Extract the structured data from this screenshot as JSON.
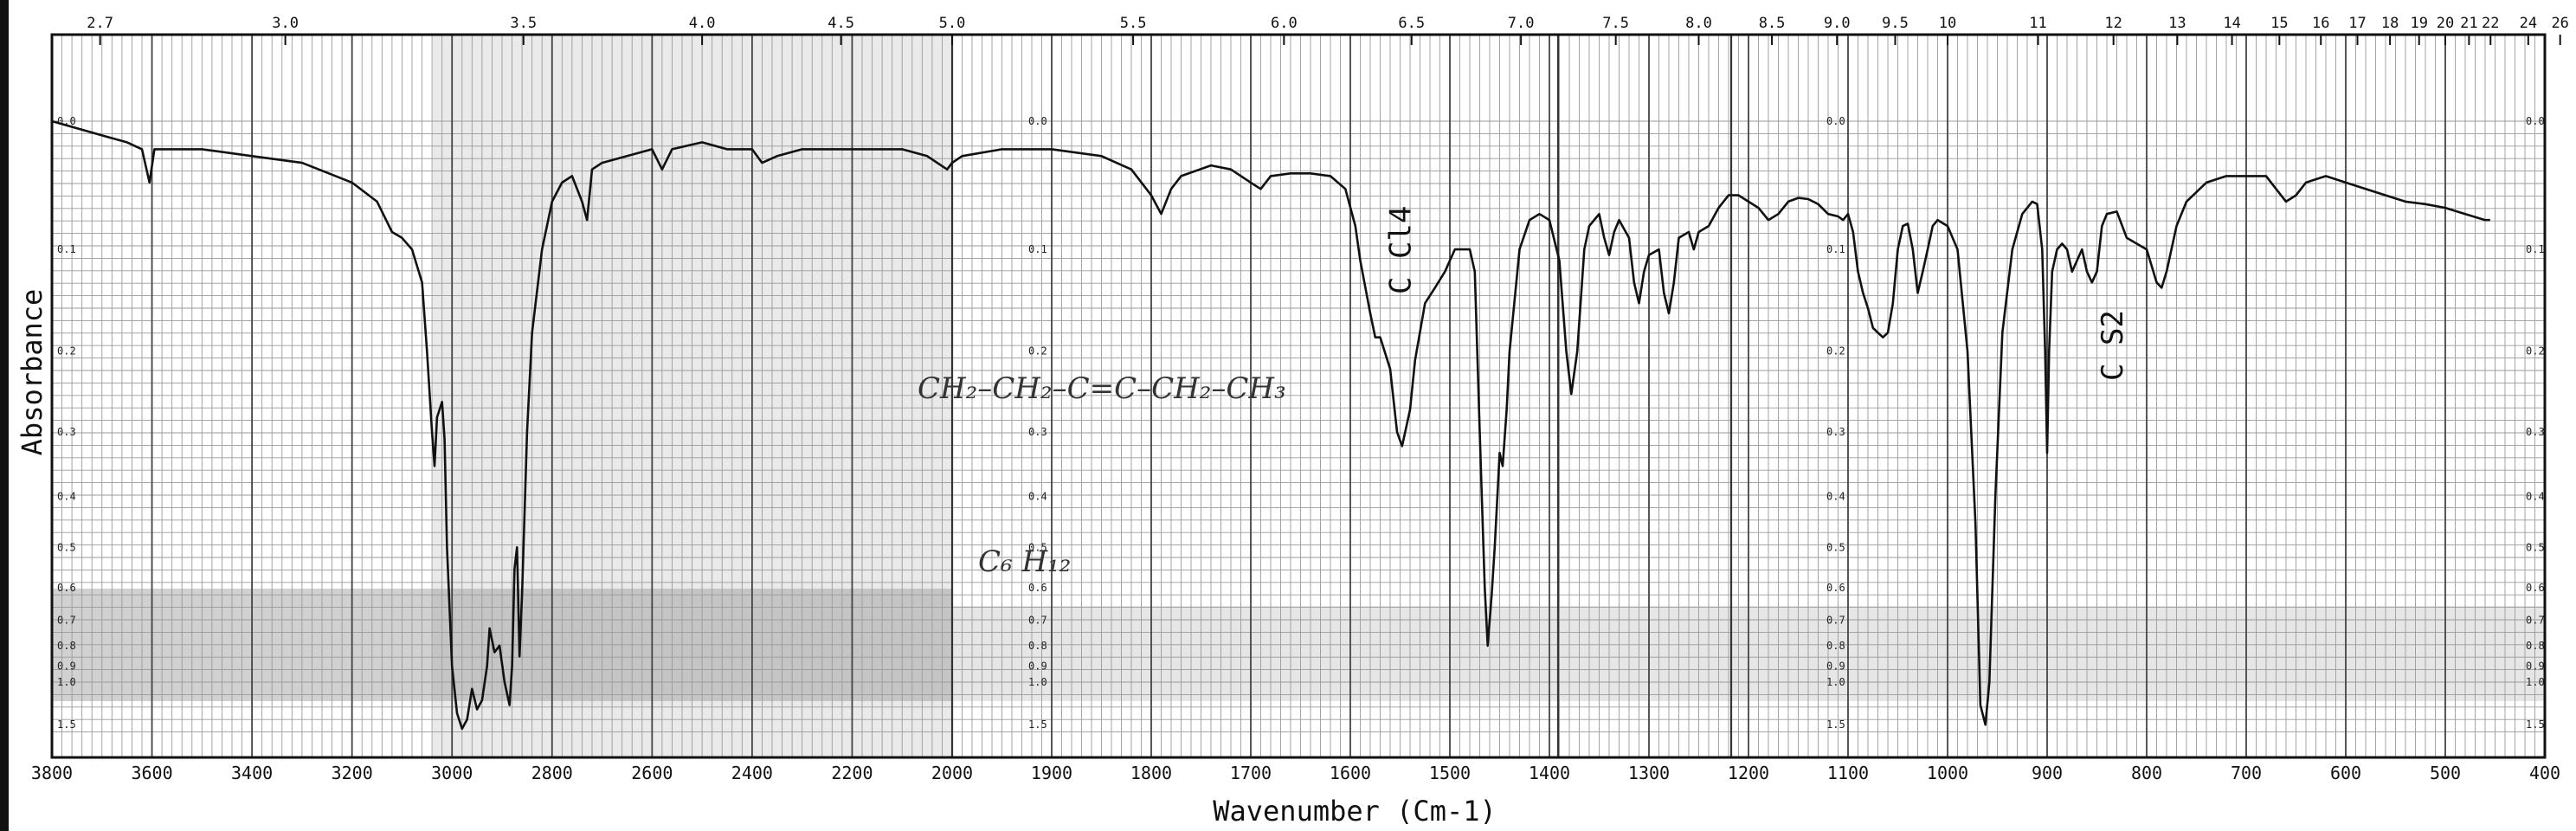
{
  "chart_data": {
    "type": "line",
    "xlabel": "Wavenumber (Cm-1)",
    "ylabel": "Absorbance",
    "x_ticks": [
      3800,
      3600,
      3400,
      3200,
      3000,
      2800,
      2600,
      2400,
      2200,
      2000,
      1900,
      1800,
      1700,
      1600,
      1500,
      1400,
      1300,
      1200,
      1100,
      1000,
      900,
      800,
      700,
      600,
      500,
      400
    ],
    "micron_ticks": [
      "2.7",
      "3.0",
      "3.5",
      "4.0",
      "4.5",
      "5.0",
      "5.5",
      "6.0",
      "6.5",
      "7.0",
      "7.5",
      "8.0",
      "8.5",
      "9.0",
      "9.5",
      "10",
      "11",
      "12",
      "13",
      "14",
      "15",
      "16",
      "17",
      "18",
      "19",
      "20",
      "21",
      "22",
      "24",
      "26"
    ],
    "micron_values": [
      2.7,
      3.0,
      3.5,
      4.0,
      4.5,
      5.0,
      5.5,
      6.0,
      6.5,
      7.0,
      7.5,
      8.0,
      8.5,
      9.0,
      9.5,
      10,
      11,
      12,
      13,
      14,
      15,
      16,
      17,
      18,
      19,
      20,
      21,
      22,
      24,
      26
    ],
    "absorbance_ticks": [
      "0.0",
      "0.1",
      "0.2",
      "0.3",
      "0.4",
      "0.5",
      "0.6",
      "0.7",
      "0.8",
      "0.9",
      "1.0",
      "1.5"
    ],
    "absorbance_values": [
      0.0,
      0.1,
      0.2,
      0.3,
      0.4,
      0.5,
      0.6,
      0.7,
      0.8,
      0.9,
      1.0,
      1.5
    ],
    "grid": true,
    "annotations": [
      {
        "text": "C Cl4",
        "x": 1550
      },
      {
        "text": "C S2",
        "x": 835
      }
    ],
    "series": [
      {
        "points": [
          [
            3800,
            0.0
          ],
          [
            3700,
            0.01
          ],
          [
            3650,
            0.015
          ],
          [
            3620,
            0.02
          ],
          [
            3605,
            0.045
          ],
          [
            3595,
            0.02
          ],
          [
            3500,
            0.02
          ],
          [
            3400,
            0.025
          ],
          [
            3300,
            0.03
          ],
          [
            3200,
            0.045
          ],
          [
            3150,
            0.06
          ],
          [
            3120,
            0.085
          ],
          [
            3100,
            0.09
          ],
          [
            3080,
            0.1
          ],
          [
            3060,
            0.13
          ],
          [
            3050,
            0.2
          ],
          [
            3040,
            0.3
          ],
          [
            3035,
            0.35
          ],
          [
            3030,
            0.28
          ],
          [
            3020,
            0.26
          ],
          [
            3015,
            0.31
          ],
          [
            3010,
            0.5
          ],
          [
            3000,
            0.9
          ],
          [
            2990,
            1.3
          ],
          [
            2980,
            1.6
          ],
          [
            2970,
            1.4
          ],
          [
            2960,
            1.05
          ],
          [
            2950,
            1.25
          ],
          [
            2940,
            1.15
          ],
          [
            2930,
            0.9
          ],
          [
            2925,
            0.73
          ],
          [
            2915,
            0.83
          ],
          [
            2905,
            0.8
          ],
          [
            2895,
            1.0
          ],
          [
            2885,
            1.2
          ],
          [
            2880,
            0.9
          ],
          [
            2875,
            0.55
          ],
          [
            2870,
            0.5
          ],
          [
            2865,
            0.85
          ],
          [
            2860,
            0.62
          ],
          [
            2850,
            0.3
          ],
          [
            2840,
            0.18
          ],
          [
            2820,
            0.1
          ],
          [
            2800,
            0.06
          ],
          [
            2780,
            0.045
          ],
          [
            2760,
            0.04
          ],
          [
            2740,
            0.06
          ],
          [
            2730,
            0.075
          ],
          [
            2720,
            0.035
          ],
          [
            2700,
            0.03
          ],
          [
            2650,
            0.025
          ],
          [
            2600,
            0.02
          ],
          [
            2580,
            0.035
          ],
          [
            2560,
            0.02
          ],
          [
            2500,
            0.015
          ],
          [
            2450,
            0.02
          ],
          [
            2400,
            0.02
          ],
          [
            2380,
            0.03
          ],
          [
            2350,
            0.025
          ],
          [
            2300,
            0.02
          ],
          [
            2200,
            0.02
          ],
          [
            2100,
            0.02
          ],
          [
            2050,
            0.025
          ],
          [
            2010,
            0.035
          ],
          [
            2000,
            0.03
          ],
          [
            1990,
            0.025
          ],
          [
            1950,
            0.02
          ],
          [
            1900,
            0.02
          ],
          [
            1850,
            0.025
          ],
          [
            1820,
            0.035
          ],
          [
            1800,
            0.055
          ],
          [
            1790,
            0.07
          ],
          [
            1780,
            0.05
          ],
          [
            1770,
            0.04
          ],
          [
            1740,
            0.032
          ],
          [
            1720,
            0.035
          ],
          [
            1700,
            0.045
          ],
          [
            1690,
            0.05
          ],
          [
            1680,
            0.04
          ],
          [
            1660,
            0.038
          ],
          [
            1640,
            0.038
          ],
          [
            1620,
            0.04
          ],
          [
            1605,
            0.05
          ],
          [
            1595,
            0.08
          ],
          [
            1590,
            0.11
          ],
          [
            1580,
            0.16
          ],
          [
            1575,
            0.185
          ],
          [
            1570,
            0.185
          ],
          [
            1560,
            0.22
          ],
          [
            1553,
            0.3
          ],
          [
            1548,
            0.32
          ],
          [
            1540,
            0.27
          ],
          [
            1535,
            0.21
          ],
          [
            1525,
            0.15
          ],
          [
            1515,
            0.135
          ],
          [
            1505,
            0.12
          ],
          [
            1495,
            0.1
          ],
          [
            1480,
            0.1
          ],
          [
            1475,
            0.12
          ],
          [
            1470,
            0.3
          ],
          [
            1465,
            0.6
          ],
          [
            1462,
            0.8
          ],
          [
            1458,
            0.62
          ],
          [
            1455,
            0.5
          ],
          [
            1450,
            0.33
          ],
          [
            1447,
            0.35
          ],
          [
            1443,
            0.27
          ],
          [
            1440,
            0.2
          ],
          [
            1430,
            0.1
          ],
          [
            1420,
            0.075
          ],
          [
            1410,
            0.07
          ],
          [
            1400,
            0.075
          ],
          [
            1390,
            0.11
          ],
          [
            1383,
            0.2
          ],
          [
            1378,
            0.25
          ],
          [
            1372,
            0.2
          ],
          [
            1365,
            0.1
          ],
          [
            1360,
            0.08
          ],
          [
            1350,
            0.07
          ],
          [
            1345,
            0.09
          ],
          [
            1340,
            0.105
          ],
          [
            1335,
            0.085
          ],
          [
            1330,
            0.075
          ],
          [
            1320,
            0.09
          ],
          [
            1315,
            0.13
          ],
          [
            1310,
            0.15
          ],
          [
            1305,
            0.12
          ],
          [
            1300,
            0.105
          ],
          [
            1290,
            0.1
          ],
          [
            1285,
            0.14
          ],
          [
            1280,
            0.16
          ],
          [
            1275,
            0.13
          ],
          [
            1270,
            0.09
          ],
          [
            1260,
            0.085
          ],
          [
            1255,
            0.1
          ],
          [
            1250,
            0.085
          ],
          [
            1240,
            0.08
          ],
          [
            1230,
            0.065
          ],
          [
            1220,
            0.055
          ],
          [
            1210,
            0.055
          ],
          [
            1200,
            0.06
          ],
          [
            1190,
            0.065
          ],
          [
            1180,
            0.075
          ],
          [
            1170,
            0.07
          ],
          [
            1160,
            0.06
          ],
          [
            1150,
            0.057
          ],
          [
            1140,
            0.058
          ],
          [
            1130,
            0.062
          ],
          [
            1120,
            0.07
          ],
          [
            1110,
            0.072
          ],
          [
            1105,
            0.075
          ],
          [
            1100,
            0.07
          ],
          [
            1095,
            0.085
          ],
          [
            1090,
            0.12
          ],
          [
            1085,
            0.14
          ],
          [
            1080,
            0.155
          ],
          [
            1075,
            0.175
          ],
          [
            1070,
            0.18
          ],
          [
            1065,
            0.185
          ],
          [
            1060,
            0.18
          ],
          [
            1055,
            0.15
          ],
          [
            1050,
            0.1
          ],
          [
            1045,
            0.08
          ],
          [
            1040,
            0.078
          ],
          [
            1035,
            0.1
          ],
          [
            1030,
            0.14
          ],
          [
            1025,
            0.12
          ],
          [
            1020,
            0.1
          ],
          [
            1015,
            0.08
          ],
          [
            1010,
            0.075
          ],
          [
            1000,
            0.08
          ],
          [
            990,
            0.1
          ],
          [
            980,
            0.2
          ],
          [
            972,
            0.45
          ],
          [
            967,
            1.2
          ],
          [
            962,
            1.5
          ],
          [
            958,
            1.0
          ],
          [
            952,
            0.4
          ],
          [
            945,
            0.18
          ],
          [
            935,
            0.1
          ],
          [
            925,
            0.07
          ],
          [
            915,
            0.06
          ],
          [
            910,
            0.062
          ],
          [
            905,
            0.1
          ],
          [
            902,
            0.2
          ],
          [
            900,
            0.33
          ],
          [
            898,
            0.2
          ],
          [
            895,
            0.12
          ],
          [
            890,
            0.1
          ],
          [
            885,
            0.095
          ],
          [
            880,
            0.1
          ],
          [
            875,
            0.12
          ],
          [
            870,
            0.11
          ],
          [
            865,
            0.1
          ],
          [
            860,
            0.12
          ],
          [
            855,
            0.13
          ],
          [
            850,
            0.12
          ],
          [
            845,
            0.08
          ],
          [
            840,
            0.07
          ],
          [
            830,
            0.068
          ],
          [
            820,
            0.09
          ],
          [
            810,
            0.095
          ],
          [
            800,
            0.1
          ],
          [
            790,
            0.13
          ],
          [
            785,
            0.135
          ],
          [
            780,
            0.12
          ],
          [
            770,
            0.08
          ],
          [
            760,
            0.06
          ],
          [
            740,
            0.045
          ],
          [
            720,
            0.04
          ],
          [
            700,
            0.04
          ],
          [
            680,
            0.04
          ],
          [
            670,
            0.05
          ],
          [
            660,
            0.06
          ],
          [
            650,
            0.055
          ],
          [
            640,
            0.045
          ],
          [
            620,
            0.04
          ],
          [
            600,
            0.045
          ],
          [
            580,
            0.05
          ],
          [
            560,
            0.055
          ],
          [
            540,
            0.06
          ],
          [
            520,
            0.062
          ],
          [
            500,
            0.065
          ],
          [
            480,
            0.07
          ],
          [
            460,
            0.075
          ],
          [
            455,
            0.075
          ]
        ]
      }
    ]
  }
}
